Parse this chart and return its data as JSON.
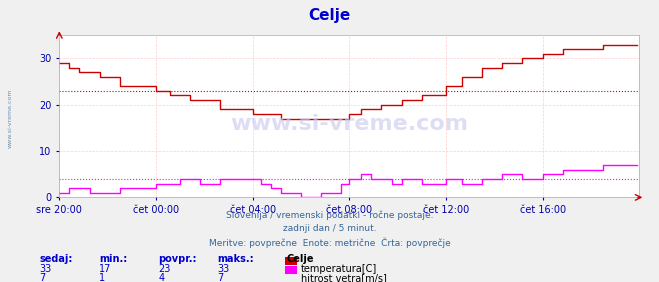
{
  "title": "Celje",
  "title_color": "#0000cc",
  "bg_color": "#f0f0f0",
  "plot_bg_color": "#ffffff",
  "grid_color": "#ffcccc",
  "x_label_color": "#0000aa",
  "y_label_color": "#0000aa",
  "x_ticks_labels": [
    "sre 20:00",
    "čet 00:00",
    "čet 04:00",
    "čet 08:00",
    "čet 12:00",
    "čet 16:00"
  ],
  "x_ticks_positions": [
    0,
    48,
    96,
    144,
    192,
    240
  ],
  "ylim": [
    0,
    35
  ],
  "yticks": [
    0,
    10,
    20,
    30
  ],
  "total_points": 288,
  "temp_avg": 23,
  "wind_avg": 4,
  "temp_color": "#cc0000",
  "wind_color": "#ff00ff",
  "watermark": "www.si-vreme.com",
  "footer_lines": [
    "Slovenija / vremenski podatki - ročne postaje.",
    "zadnji dan / 5 minut.",
    "Meritve: povprečne  Enote: metrične  Črta: povprečje"
  ],
  "footer_color": "#336699",
  "legend_title": "Celje",
  "legend_items": [
    {
      "label": "temperatura[C]",
      "color": "#cc0000"
    },
    {
      "label": "hitrost vetra[m/s]",
      "color": "#ff00ff"
    }
  ],
  "table_headers": [
    "sedaj:",
    "min.:",
    "povpr.:",
    "maks.:"
  ],
  "table_data": [
    [
      33,
      17,
      23,
      33
    ],
    [
      7,
      1,
      4,
      7
    ]
  ],
  "table_color": "#0000cc",
  "sidebar_text": "www.si-vreme.com",
  "sidebar_color": "#336699"
}
